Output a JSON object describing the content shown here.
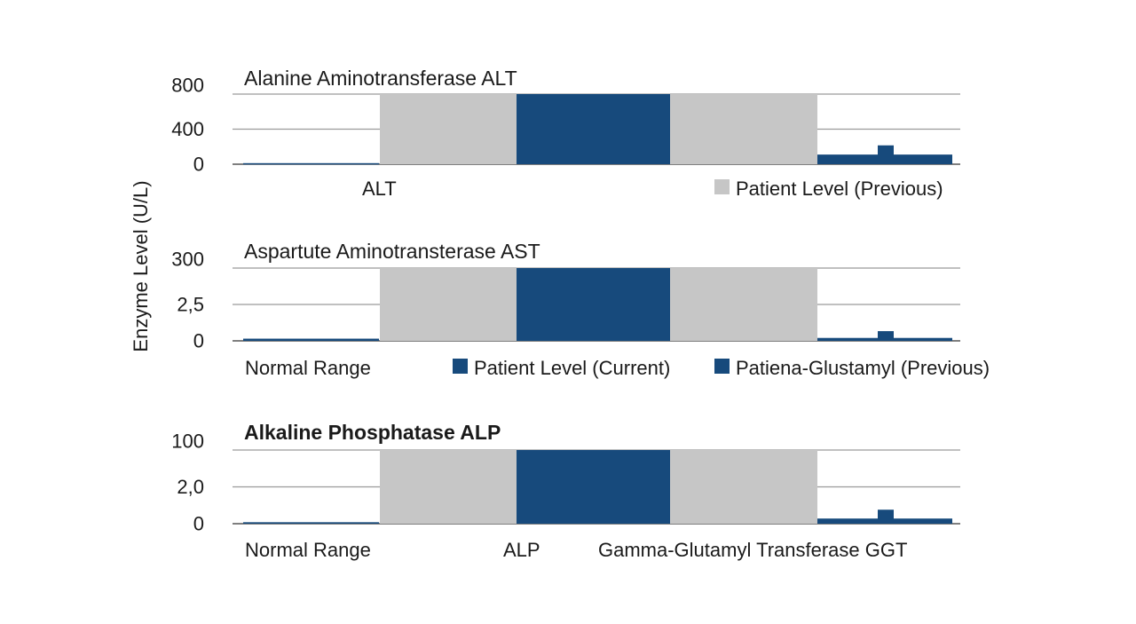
{
  "chart_data": {
    "type": "bar",
    "ylabel": "Enzyme Level (U/L)",
    "colors": {
      "range": "#c6c6c6",
      "current": "#174a7c",
      "previous": "#174a7c",
      "grid": "#9a9a9a"
    },
    "panels": [
      {
        "title": "Alanine Aminotransferase ALT",
        "yticks": [
          "800",
          "400",
          "0"
        ],
        "ylim": [
          0,
          800
        ],
        "bands": [
          {
            "series": "range",
            "value": 800
          },
          {
            "series": "current",
            "value": 800
          },
          {
            "series": "range",
            "value": 800
          }
        ],
        "left_bars": [
          {
            "value": 12
          },
          {
            "value": 12
          }
        ],
        "right_bars": [
          {
            "value": 110
          },
          {
            "value": 215
          },
          {
            "value": 110
          }
        ],
        "legend": [
          {
            "label": "ALT",
            "marker": "none"
          },
          {
            "label": "Patient Level (Previous)",
            "marker": "range"
          }
        ]
      },
      {
        "title": "Aspartute Aminotransterase AST",
        "yticks": [
          "300",
          "2,5",
          "0"
        ],
        "ylim": [
          0,
          300
        ],
        "bands": [
          {
            "series": "range",
            "value": 300
          },
          {
            "series": "current",
            "value": 300
          },
          {
            "series": "range",
            "value": 300
          }
        ],
        "left_bars": [
          {
            "value": 9
          },
          {
            "value": 9
          }
        ],
        "right_bars": [
          {
            "value": 12
          },
          {
            "value": 40
          },
          {
            "value": 12
          }
        ],
        "legend": [
          {
            "label": "Normal Range",
            "marker": "none"
          },
          {
            "label": "Patient Level (Current)",
            "marker": "current"
          },
          {
            "label": "Patiena-Glustamyl (Previous)",
            "marker": "previous"
          }
        ]
      },
      {
        "title": "Alkaline Phosphatase ALP",
        "yticks": [
          "100",
          "2,0",
          "0"
        ],
        "ylim": [
          0,
          100
        ],
        "bands": [
          {
            "series": "range",
            "value": 100
          },
          {
            "series": "current",
            "value": 100
          },
          {
            "series": "range",
            "value": 100
          }
        ],
        "left_bars": [
          {
            "value": 2
          },
          {
            "value": 2
          }
        ],
        "right_bars": [
          {
            "value": 7
          },
          {
            "value": 19
          },
          {
            "value": 7
          }
        ],
        "legend": [
          {
            "label": "Normal Range",
            "marker": "none"
          },
          {
            "label": "ALP",
            "marker": "none"
          },
          {
            "label": "Gamma-Glutamyl Transferase GGT",
            "marker": "none"
          }
        ]
      }
    ]
  }
}
